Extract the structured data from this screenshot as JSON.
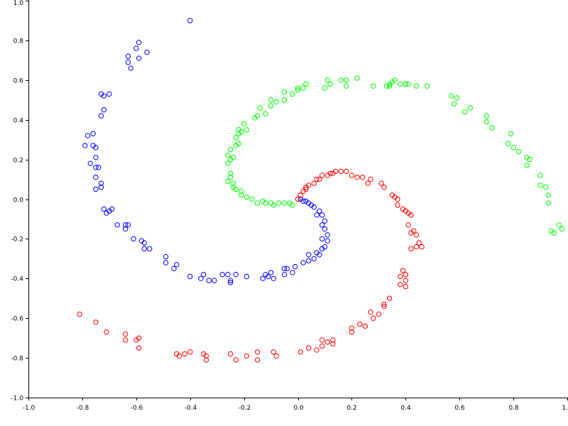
{
  "chart_data": {
    "type": "scatter",
    "title": "",
    "xlabel": "",
    "ylabel": "",
    "xlim": [
      -1.0,
      1.0
    ],
    "ylim": [
      -1.0,
      1.0
    ],
    "grid": false,
    "x_ticks": [
      -1.0,
      -0.8,
      -0.6,
      -0.4,
      -0.2,
      0.0,
      0.2,
      0.4,
      0.6,
      0.8,
      1.0
    ],
    "x_tick_labels": [
      "-1.0",
      "-0.8",
      "-0.6",
      "-0.4",
      "-0.2",
      "0.0",
      "0.2",
      "0.4",
      "0.6",
      "0.8",
      "1."
    ],
    "y_ticks": [
      1.0,
      0.8,
      0.6,
      0.4,
      0.2,
      0.0,
      -0.2,
      -0.4,
      -0.6,
      -0.8,
      -1.0
    ],
    "y_tick_labels": [
      "1.0",
      "0.8",
      "0.6",
      "0.4",
      "0.2",
      "0.0",
      "-0.2",
      "-0.4",
      "-0.6",
      "-0.8",
      "-1.0"
    ],
    "marker": "open-circle",
    "series": [
      {
        "color": "#0000ff",
        "points": [
          [
            -0.4,
            0.9
          ],
          [
            -0.59,
            0.79
          ],
          [
            -0.56,
            0.74
          ],
          [
            -0.6,
            0.76
          ],
          [
            -0.59,
            0.71
          ],
          [
            -0.63,
            0.72
          ],
          [
            -0.63,
            0.69
          ],
          [
            -0.62,
            0.66
          ],
          [
            -0.7,
            0.53
          ],
          [
            -0.72,
            0.52
          ],
          [
            -0.73,
            0.53
          ],
          [
            -0.72,
            0.45
          ],
          [
            -0.73,
            0.42
          ],
          [
            -0.76,
            0.33
          ],
          [
            -0.78,
            0.32
          ],
          [
            -0.79,
            0.27
          ],
          [
            -0.76,
            0.27
          ],
          [
            -0.75,
            0.26
          ],
          [
            -0.75,
            0.21
          ],
          [
            -0.77,
            0.18
          ],
          [
            -0.75,
            0.16
          ],
          [
            -0.74,
            0.16
          ],
          [
            -0.75,
            0.11
          ],
          [
            -0.73,
            0.08
          ],
          [
            -0.73,
            0.06
          ],
          [
            -0.75,
            0.05
          ],
          [
            -0.72,
            -0.05
          ],
          [
            -0.69,
            -0.05
          ],
          [
            -0.7,
            -0.06
          ],
          [
            -0.71,
            -0.07
          ],
          [
            -0.67,
            -0.13
          ],
          [
            -0.64,
            -0.13
          ],
          [
            -0.63,
            -0.13
          ],
          [
            -0.64,
            -0.15
          ],
          [
            -0.61,
            -0.2
          ],
          [
            -0.58,
            -0.21
          ],
          [
            -0.57,
            -0.22
          ],
          [
            -0.57,
            -0.25
          ],
          [
            -0.55,
            -0.25
          ],
          [
            -0.49,
            -0.29
          ],
          [
            -0.49,
            -0.32
          ],
          [
            -0.46,
            -0.35
          ],
          [
            -0.45,
            -0.33
          ],
          [
            -0.4,
            -0.39
          ],
          [
            -0.35,
            -0.38
          ],
          [
            -0.36,
            -0.4
          ],
          [
            -0.33,
            -0.41
          ],
          [
            -0.31,
            -0.41
          ],
          [
            -0.28,
            -0.38
          ],
          [
            -0.26,
            -0.38
          ],
          [
            -0.25,
            -0.41
          ],
          [
            -0.25,
            -0.42
          ],
          [
            -0.23,
            -0.38
          ],
          [
            -0.19,
            -0.39
          ],
          [
            -0.13,
            -0.4
          ],
          [
            -0.12,
            -0.38
          ],
          [
            -0.11,
            -0.39
          ],
          [
            -0.1,
            -0.37
          ],
          [
            -0.09,
            -0.4
          ],
          [
            -0.05,
            -0.38
          ],
          [
            -0.05,
            -0.35
          ],
          [
            -0.04,
            -0.35
          ],
          [
            -0.02,
            -0.37
          ],
          [
            -0.01,
            -0.34
          ],
          [
            0.02,
            -0.32
          ],
          [
            0.04,
            -0.31
          ],
          [
            0.04,
            -0.28
          ],
          [
            0.06,
            -0.3
          ],
          [
            0.07,
            -0.27
          ],
          [
            0.08,
            -0.28
          ],
          [
            0.09,
            -0.25
          ],
          [
            0.1,
            -0.24
          ],
          [
            0.11,
            -0.21
          ],
          [
            0.11,
            -0.18
          ],
          [
            0.09,
            -0.2
          ],
          [
            0.1,
            -0.15
          ],
          [
            0.09,
            -0.13
          ],
          [
            0.1,
            -0.11
          ],
          [
            0.09,
            -0.08
          ],
          [
            0.07,
            -0.08
          ],
          [
            0.08,
            -0.06
          ],
          [
            0.06,
            -0.04
          ],
          [
            0.05,
            -0.03
          ],
          [
            0.04,
            -0.02
          ],
          [
            0.03,
            -0.01
          ],
          [
            0.02,
            -0.01
          ],
          [
            0.01,
            0.0
          ],
          [
            0.0,
            0.0
          ]
        ]
      },
      {
        "color": "#00ff00",
        "points": [
          [
            0.0,
            0.0
          ],
          [
            -0.02,
            -0.03
          ],
          [
            -0.03,
            -0.02
          ],
          [
            -0.05,
            -0.02
          ],
          [
            -0.07,
            -0.02
          ],
          [
            -0.09,
            -0.03
          ],
          [
            -0.1,
            -0.02
          ],
          [
            -0.12,
            -0.02
          ],
          [
            -0.13,
            -0.01
          ],
          [
            -0.15,
            -0.02
          ],
          [
            -0.17,
            0.0
          ],
          [
            -0.19,
            0.01
          ],
          [
            -0.21,
            0.02
          ],
          [
            -0.21,
            0.04
          ],
          [
            -0.23,
            0.05
          ],
          [
            -0.24,
            0.06
          ],
          [
            -0.24,
            0.08
          ],
          [
            -0.26,
            0.09
          ],
          [
            -0.25,
            0.11
          ],
          [
            -0.25,
            0.13
          ],
          [
            -0.26,
            0.18
          ],
          [
            -0.25,
            0.2
          ],
          [
            -0.24,
            0.21
          ],
          [
            -0.26,
            0.22
          ],
          [
            -0.25,
            0.25
          ],
          [
            -0.23,
            0.27
          ],
          [
            -0.22,
            0.28
          ],
          [
            -0.23,
            0.31
          ],
          [
            -0.22,
            0.33
          ],
          [
            -0.21,
            0.34
          ],
          [
            -0.22,
            0.35
          ],
          [
            -0.19,
            0.35
          ],
          [
            -0.2,
            0.38
          ],
          [
            -0.16,
            0.41
          ],
          [
            -0.15,
            0.42
          ],
          [
            -0.12,
            0.43
          ],
          [
            -0.14,
            0.46
          ],
          [
            -0.1,
            0.47
          ],
          [
            -0.1,
            0.5
          ],
          [
            -0.08,
            0.49
          ],
          [
            -0.05,
            0.5
          ],
          [
            -0.05,
            0.54
          ],
          [
            -0.02,
            0.53
          ],
          [
            0.0,
            0.55
          ],
          [
            0.0,
            0.56
          ],
          [
            0.02,
            0.56
          ],
          [
            0.03,
            0.58
          ],
          [
            0.1,
            0.56
          ],
          [
            0.12,
            0.58
          ],
          [
            0.11,
            0.6
          ],
          [
            0.16,
            0.6
          ],
          [
            0.18,
            0.57
          ],
          [
            0.18,
            0.6
          ],
          [
            0.22,
            0.61
          ],
          [
            0.28,
            0.57
          ],
          [
            0.33,
            0.57
          ],
          [
            0.34,
            0.57
          ],
          [
            0.34,
            0.58
          ],
          [
            0.35,
            0.59
          ],
          [
            0.36,
            0.6
          ],
          [
            0.38,
            0.58
          ],
          [
            0.4,
            0.58
          ],
          [
            0.41,
            0.58
          ],
          [
            0.44,
            0.57
          ],
          [
            0.48,
            0.57
          ],
          [
            0.57,
            0.52
          ],
          [
            0.58,
            0.48
          ],
          [
            0.59,
            0.51
          ],
          [
            0.62,
            0.44
          ],
          [
            0.64,
            0.46
          ],
          [
            0.7,
            0.42
          ],
          [
            0.7,
            0.39
          ],
          [
            0.72,
            0.36
          ],
          [
            0.79,
            0.33
          ],
          [
            0.78,
            0.28
          ],
          [
            0.8,
            0.26
          ],
          [
            0.82,
            0.24
          ],
          [
            0.85,
            0.21
          ],
          [
            0.86,
            0.2
          ],
          [
            0.85,
            0.17
          ],
          [
            0.9,
            0.12
          ],
          [
            0.9,
            0.07
          ],
          [
            0.92,
            0.06
          ],
          [
            0.93,
            0.02
          ],
          [
            0.93,
            -0.02
          ],
          [
            0.94,
            -0.16
          ],
          [
            0.95,
            -0.17
          ],
          [
            0.97,
            -0.13
          ],
          [
            0.98,
            -0.15
          ]
        ]
      },
      {
        "color": "#ff0000",
        "points": [
          [
            0.0,
            0.0
          ],
          [
            0.01,
            0.02
          ],
          [
            0.02,
            0.04
          ],
          [
            0.03,
            0.05
          ],
          [
            0.03,
            0.06
          ],
          [
            0.04,
            0.07
          ],
          [
            0.06,
            0.08
          ],
          [
            0.07,
            0.1
          ],
          [
            0.08,
            0.1
          ],
          [
            0.09,
            0.12
          ],
          [
            0.11,
            0.12
          ],
          [
            0.12,
            0.13
          ],
          [
            0.13,
            0.13
          ],
          [
            0.14,
            0.14
          ],
          [
            0.16,
            0.14
          ],
          [
            0.18,
            0.14
          ],
          [
            0.2,
            0.12
          ],
          [
            0.22,
            0.11
          ],
          [
            0.24,
            0.11
          ],
          [
            0.27,
            0.1
          ],
          [
            0.26,
            0.08
          ],
          [
            0.31,
            0.08
          ],
          [
            0.32,
            0.06
          ],
          [
            0.35,
            0.02
          ],
          [
            0.36,
            0.01
          ],
          [
            0.37,
            0.0
          ],
          [
            0.37,
            -0.03
          ],
          [
            0.39,
            -0.05
          ],
          [
            0.4,
            -0.06
          ],
          [
            0.41,
            -0.07
          ],
          [
            0.42,
            -0.08
          ],
          [
            0.41,
            -0.13
          ],
          [
            0.43,
            -0.16
          ],
          [
            0.42,
            -0.17
          ],
          [
            0.44,
            -0.18
          ],
          [
            0.45,
            -0.22
          ],
          [
            0.44,
            -0.24
          ],
          [
            0.46,
            -0.24
          ],
          [
            0.42,
            -0.25
          ],
          [
            0.39,
            -0.36
          ],
          [
            0.4,
            -0.38
          ],
          [
            0.38,
            -0.39
          ],
          [
            0.4,
            -0.41
          ],
          [
            0.38,
            -0.43
          ],
          [
            0.4,
            -0.44
          ],
          [
            0.34,
            -0.5
          ],
          [
            0.32,
            -0.53
          ],
          [
            0.32,
            -0.54
          ],
          [
            0.3,
            -0.58
          ],
          [
            0.27,
            -0.57
          ],
          [
            0.28,
            -0.6
          ],
          [
            0.25,
            -0.64
          ],
          [
            0.23,
            -0.63
          ],
          [
            0.2,
            -0.65
          ],
          [
            0.2,
            -0.67
          ],
          [
            0.13,
            -0.71
          ],
          [
            0.13,
            -0.73
          ],
          [
            0.11,
            -0.72
          ],
          [
            0.09,
            -0.71
          ],
          [
            0.09,
            -0.74
          ],
          [
            0.07,
            -0.76
          ],
          [
            0.04,
            -0.75
          ],
          [
            0.01,
            -0.77
          ],
          [
            -0.08,
            -0.79
          ],
          [
            -0.09,
            -0.77
          ],
          [
            -0.15,
            -0.77
          ],
          [
            -0.15,
            -0.81
          ],
          [
            -0.19,
            -0.79
          ],
          [
            -0.23,
            -0.81
          ],
          [
            -0.25,
            -0.78
          ],
          [
            -0.34,
            -0.79
          ],
          [
            -0.34,
            -0.81
          ],
          [
            -0.35,
            -0.78
          ],
          [
            -0.4,
            -0.77
          ],
          [
            -0.42,
            -0.78
          ],
          [
            -0.44,
            -0.79
          ],
          [
            -0.45,
            -0.78
          ],
          [
            -0.59,
            -0.75
          ],
          [
            -0.59,
            -0.7
          ],
          [
            -0.6,
            -0.71
          ],
          [
            -0.64,
            -0.71
          ],
          [
            -0.64,
            -0.68
          ],
          [
            -0.71,
            -0.67
          ],
          [
            -0.75,
            -0.62
          ],
          [
            -0.81,
            -0.58
          ]
        ]
      }
    ]
  }
}
